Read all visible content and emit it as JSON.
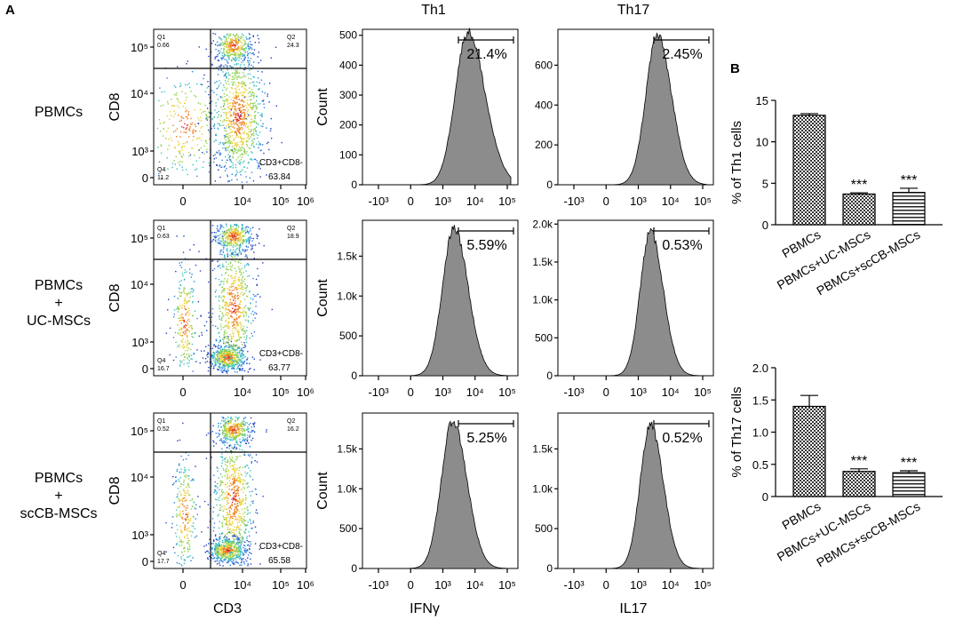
{
  "figure": {
    "panel_a_label": "A",
    "panel_b_label": "B",
    "col_th1": "Th1",
    "col_th17": "Th17",
    "xlabel_dot": "CD3",
    "xlabel_th1": "IFNγ",
    "xlabel_th17": "IL17",
    "ylabel_dot": "CD8",
    "ylabel_hist": "Count",
    "dot_yticks": [
      "0",
      "10³",
      "10⁴",
      "10⁵"
    ],
    "dot_xticks": [
      "0",
      "10⁴",
      "10⁵",
      "10⁶"
    ],
    "hist_xticks": [
      "-10³",
      "0",
      "10³",
      "10⁴",
      "10⁵"
    ]
  },
  "rows": [
    {
      "name": "PBMCs",
      "label_lines": [
        "PBMCs"
      ],
      "quadrants": {
        "q1": "Q1",
        "q1_val": "0.66",
        "q2": "Q2",
        "q2_val": "24.3",
        "q4": "Q4",
        "q4_val": "11.2",
        "gate_label": "CD3+CD8-",
        "gate_val": "63.84"
      },
      "th1": {
        "percent": "21.4%",
        "yticks": [
          "0",
          "100",
          "200",
          "300",
          "400",
          "500"
        ],
        "ymax": 520,
        "peak_log": 3.3,
        "peak_count": 500,
        "width": 0.55,
        "tail": true
      },
      "th17": {
        "percent": "2.45%",
        "yticks": [
          "0",
          "200",
          "400",
          "600"
        ],
        "ymax": 780,
        "peak_log": 3.05,
        "peak_count": 750,
        "width": 0.5,
        "tail": false
      }
    },
    {
      "name": "PBMCs+UC-MSCs",
      "label_lines": [
        "PBMCs",
        "+",
        "UC-MSCs"
      ],
      "quadrants": {
        "q1": "Q1",
        "q1_val": "0.63",
        "q2": "Q2",
        "q2_val": "18.9",
        "q4": "Q4",
        "q4_val": "16.7",
        "gate_label": "CD3+CD8-",
        "gate_val": "63.77"
      },
      "th1": {
        "percent": "5.59%",
        "yticks": [
          "0",
          "500",
          "1.0k",
          "1.5k"
        ],
        "ymax": 1950,
        "peak_log": 2.7,
        "peak_count": 1850,
        "width": 0.5,
        "tail": false
      },
      "th17": {
        "percent": "0.53%",
        "yticks": [
          "0",
          "500",
          "1.0k",
          "1.5k",
          "2.0k"
        ],
        "ymax": 2050,
        "peak_log": 2.75,
        "peak_count": 1900,
        "width": 0.45,
        "tail": false
      }
    },
    {
      "name": "PBMCs+scCB-MSCs",
      "label_lines": [
        "PBMCs",
        "+",
        "scCB-MSCs"
      ],
      "quadrants": {
        "q1": "Q1",
        "q1_val": "0.52",
        "q2": "Q2",
        "q2_val": "16.2",
        "q4": "Q4",
        "q4_val": "17.7",
        "gate_label": "CD3+CD8-",
        "gate_val": "65.58"
      },
      "th1": {
        "percent": "5.25%",
        "yticks": [
          "0",
          "500",
          "1.0k",
          "1.5k"
        ],
        "ymax": 1950,
        "peak_log": 2.65,
        "peak_count": 1850,
        "width": 0.5,
        "tail": false
      },
      "th17": {
        "percent": "0.52%",
        "yticks": [
          "0",
          "500",
          "1.0k",
          "1.5k"
        ],
        "ymax": 1950,
        "peak_log": 2.75,
        "peak_count": 1800,
        "width": 0.45,
        "tail": false
      }
    }
  ],
  "chart_data": [
    {
      "type": "bar",
      "title": "",
      "ylabel": "% of Th1 cells",
      "categories": [
        "PBMCs",
        "PBMCs+UC-MSCs",
        "PBMCs+scCB-MSCs"
      ],
      "values": [
        13.2,
        3.7,
        3.9
      ],
      "errors": [
        0.2,
        0.15,
        0.5
      ],
      "significance": [
        "",
        "***",
        "***"
      ],
      "fills": [
        "checker",
        "checker",
        "hstripes"
      ],
      "ylim": [
        0,
        15
      ],
      "yticks": [
        "0",
        "5",
        "10",
        "15"
      ]
    },
    {
      "type": "bar",
      "title": "",
      "ylabel": "% of Th17 cells",
      "categories": [
        "PBMCs",
        "PBMCs+UC-MSCs",
        "PBMCs+scCB-MSCs"
      ],
      "values": [
        1.4,
        0.39,
        0.37
      ],
      "errors": [
        0.17,
        0.04,
        0.03
      ],
      "significance": [
        "",
        "***",
        "***"
      ],
      "fills": [
        "checker",
        "checker",
        "hstripes"
      ],
      "ylim": [
        0,
        2.0
      ],
      "yticks": [
        "0",
        "0.5",
        "1.0",
        "1.5",
        "2.0"
      ]
    }
  ]
}
